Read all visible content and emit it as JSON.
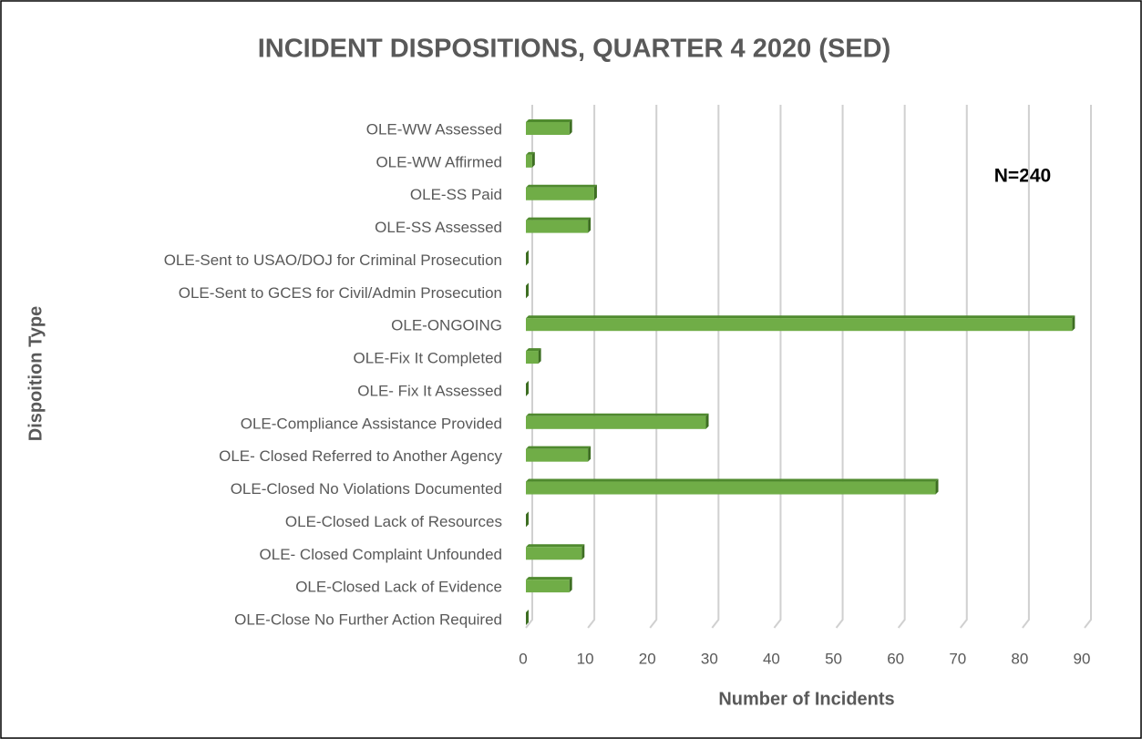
{
  "chart_data": {
    "type": "hbar",
    "title": "INCIDENT DISPOSITIONS, QUARTER 4 2020 (SED)",
    "xlabel": "Number of Incidents",
    "ylabel": "Dispoition Type",
    "annotation": "N=240",
    "categories": [
      "OLE-WW Assessed",
      "OLE-WW Affirmed",
      "OLE-SS Paid",
      "OLE-SS Assessed",
      "OLE-Sent to USAO/DOJ for Criminal Prosecution",
      "OLE-Sent to GCES for Civil/Admin Prosecution",
      "OLE-ONGOING",
      "OLE-Fix It Completed",
      "OLE- Fix It Assessed",
      "OLE-Compliance Assistance Provided",
      "OLE- Closed Referred to Another Agency",
      "OLE-Closed No Violations Documented",
      "OLE-Closed Lack of Resources",
      "OLE- Closed Complaint Unfounded",
      "OLE-Closed Lack of Evidence",
      "OLE-Close No Further Action Required"
    ],
    "values": [
      7,
      1,
      11,
      10,
      0,
      0,
      88,
      2,
      0,
      29,
      10,
      66,
      0,
      9,
      7,
      0
    ],
    "color": "#70ad47",
    "xlim": [
      0,
      90
    ],
    "xticks": [
      0,
      10,
      20,
      30,
      40,
      50,
      60,
      70,
      80,
      90
    ],
    "grid": true
  }
}
